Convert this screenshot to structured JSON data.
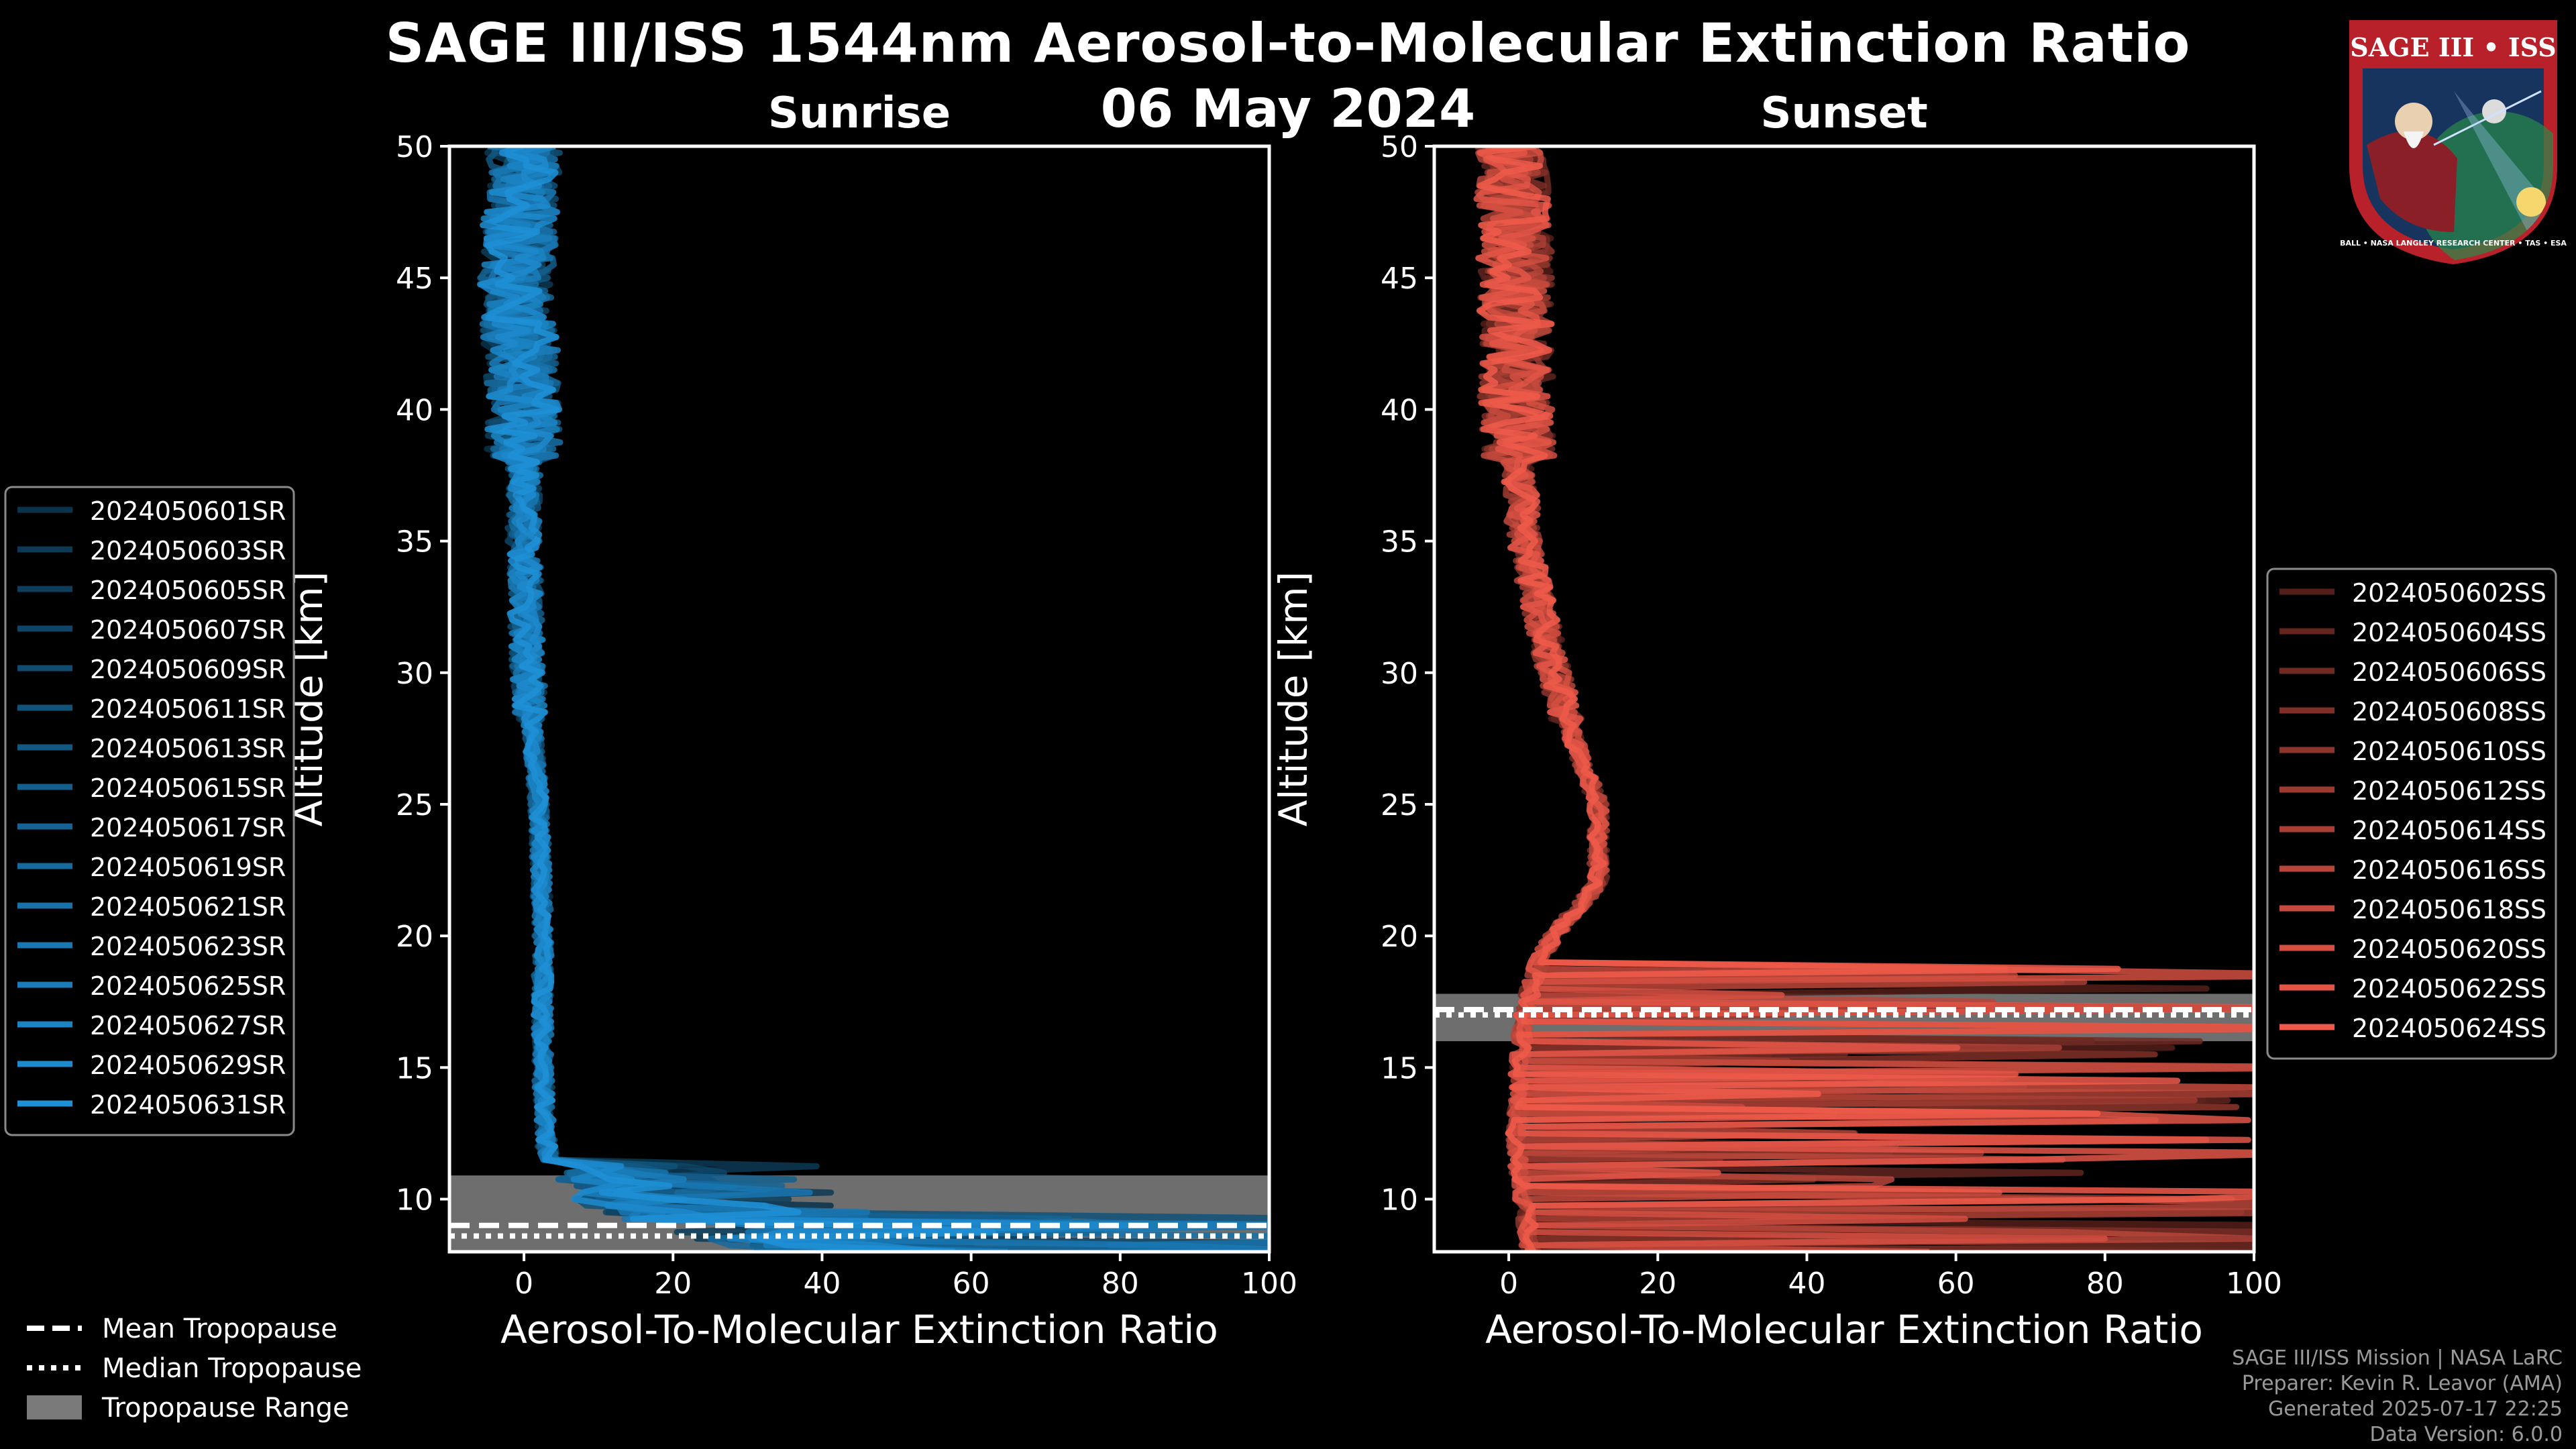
{
  "header": {
    "title": "SAGE III/ISS 1544nm Aerosol-to-Molecular Extinction Ratio",
    "date": "06 May 2024"
  },
  "logo": {
    "label": "SAGE III • ISS",
    "ring_text": "BALL • NASA LANGLEY RESEARCH CENTER • TAS • ESA"
  },
  "credits": {
    "mission": "SAGE III/ISS Mission | NASA LaRC",
    "preparer": "Preparer: Kevin R. Leavor (AMA)",
    "generated": "Generated 2025-07-17 22:25",
    "version": "Data Version: 6.0.0"
  },
  "colors": {
    "sunrise": "#1e90d6",
    "sunset": "#f05a4a",
    "tropopause_range": "#7a7a7a",
    "axis": "#ffffff"
  },
  "legend_common": [
    {
      "label": "Mean Tropopause",
      "style": "dashed"
    },
    {
      "label": "Median Tropopause",
      "style": "dotted"
    },
    {
      "label": "Tropopause Range",
      "style": "patch"
    }
  ],
  "chart_data": [
    {
      "type": "line",
      "title": "Sunrise",
      "xlabel": "Aerosol-To-Molecular Extinction Ratio",
      "ylabel": "Altitude [km]",
      "xlim": [
        -10,
        100
      ],
      "ylim": [
        8,
        50
      ],
      "xticks": [
        0,
        20,
        40,
        60,
        80,
        100
      ],
      "yticks": [
        10,
        15,
        20,
        25,
        30,
        35,
        40,
        45,
        50
      ],
      "tropopause": {
        "mean": 9.0,
        "median": 8.6,
        "range": [
          8,
          10.9
        ]
      },
      "legend_position": "outside-left",
      "series": [
        {
          "name": "2024050601SR"
        },
        {
          "name": "2024050603SR"
        },
        {
          "name": "2024050605SR"
        },
        {
          "name": "2024050607SR"
        },
        {
          "name": "2024050609SR"
        },
        {
          "name": "2024050611SR"
        },
        {
          "name": "2024050613SR"
        },
        {
          "name": "2024050615SR"
        },
        {
          "name": "2024050617SR"
        },
        {
          "name": "2024050619SR"
        },
        {
          "name": "2024050621SR"
        },
        {
          "name": "2024050623SR"
        },
        {
          "name": "2024050625SR"
        },
        {
          "name": "2024050627SR"
        },
        {
          "name": "2024050629SR"
        },
        {
          "name": "2024050631SR"
        }
      ],
      "profile": {
        "altitude": [
          8,
          9,
          10,
          11,
          12,
          15,
          20,
          25,
          30,
          35,
          40,
          45,
          50
        ],
        "ratio": [
          30,
          15,
          6,
          4,
          3,
          2.5,
          2.5,
          2,
          0.5,
          0,
          0,
          -1,
          0
        ]
      }
    },
    {
      "type": "line",
      "title": "Sunset",
      "xlabel": "Aerosol-To-Molecular Extinction Ratio",
      "ylabel": "Altitude [km]",
      "xlim": [
        -10,
        100
      ],
      "ylim": [
        8,
        50
      ],
      "xticks": [
        0,
        20,
        40,
        60,
        80,
        100
      ],
      "yticks": [
        10,
        15,
        20,
        25,
        30,
        35,
        40,
        45,
        50
      ],
      "tropopause": {
        "mean": 17.2,
        "median": 17.0,
        "range": [
          16.0,
          17.8
        ]
      },
      "legend_position": "outside-right",
      "series": [
        {
          "name": "2024050602SS"
        },
        {
          "name": "2024050604SS"
        },
        {
          "name": "2024050606SS"
        },
        {
          "name": "2024050608SS"
        },
        {
          "name": "2024050610SS"
        },
        {
          "name": "2024050612SS"
        },
        {
          "name": "2024050614SS"
        },
        {
          "name": "2024050616SS"
        },
        {
          "name": "2024050618SS"
        },
        {
          "name": "2024050620SS"
        },
        {
          "name": "2024050622SS"
        },
        {
          "name": "2024050624SS"
        }
      ],
      "profile": {
        "altitude": [
          8,
          10,
          12,
          15,
          17,
          18,
          19,
          20,
          22,
          25,
          28,
          30,
          35,
          40,
          45,
          50
        ],
        "ratio": [
          3,
          2,
          1,
          1.5,
          2,
          3,
          4,
          6,
          12,
          12,
          8,
          6,
          2,
          1,
          1,
          0
        ]
      }
    }
  ]
}
